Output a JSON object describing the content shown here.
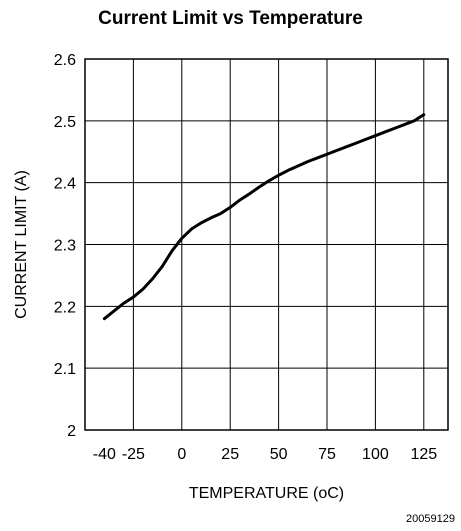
{
  "chart_data": {
    "type": "line",
    "title": "Current Limit vs Temperature",
    "xlabel": "TEMPERATURE (oC)",
    "ylabel": "CURRENT LIMIT (A)",
    "x_ticks": [
      "-40",
      "-25",
      "0",
      "25",
      "50",
      "75",
      "100",
      "125"
    ],
    "y_ticks": [
      "2",
      "2.1",
      "2.2",
      "2.3",
      "2.4",
      "2.5",
      "2.6"
    ],
    "x_grid": [
      -50,
      -25,
      0,
      25,
      50,
      75,
      100,
      125,
      137.5
    ],
    "xlim": [
      -50,
      137.5
    ],
    "ylim": [
      2.0,
      2.6
    ],
    "grid": true,
    "series": [
      {
        "color": "#000000",
        "x": [
          -40,
          -30,
          -25,
          -20,
          -15,
          -10,
          -5,
          0,
          5,
          10,
          15,
          20,
          25,
          30,
          35,
          40,
          45,
          50,
          55,
          60,
          65,
          70,
          75,
          80,
          85,
          90,
          95,
          100,
          105,
          110,
          115,
          120,
          125
        ],
        "y": [
          2.18,
          2.205,
          2.215,
          2.228,
          2.245,
          2.265,
          2.29,
          2.31,
          2.325,
          2.335,
          2.343,
          2.35,
          2.36,
          2.372,
          2.382,
          2.393,
          2.403,
          2.412,
          2.42,
          2.427,
          2.434,
          2.44,
          2.446,
          2.452,
          2.458,
          2.464,
          2.47,
          2.476,
          2.482,
          2.488,
          2.494,
          2.5,
          2.51
        ]
      }
    ]
  },
  "figure_id": "20059129"
}
